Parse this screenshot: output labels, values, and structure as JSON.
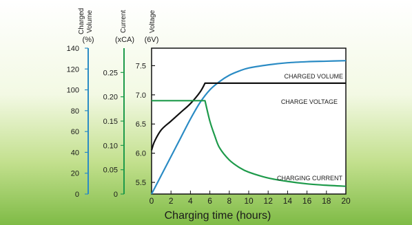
{
  "chart_data": {
    "type": "line",
    "xlabel": "Charging time (hours)",
    "x_ticks": [
      0,
      2,
      4,
      6,
      8,
      10,
      12,
      14,
      16,
      18,
      20
    ],
    "xlim": [
      0,
      20
    ],
    "axes": {
      "volume": {
        "title": "Charged Volume",
        "unit": "(%)",
        "ticks": [
          0,
          20,
          40,
          60,
          80,
          100,
          120,
          140
        ],
        "range": [
          0,
          140
        ],
        "color": "#2a8bc4"
      },
      "current": {
        "title": "Current",
        "unit": "(xCA)",
        "ticks": [
          0,
          0.05,
          0.1,
          0.15,
          0.2,
          0.25
        ],
        "tick_labels": [
          "0",
          "0.05",
          "0.10",
          "0.15",
          "0.20",
          "0.25"
        ],
        "range": [
          0,
          0.3
        ],
        "color": "#1d9a4a"
      },
      "voltage": {
        "title": "Voltage",
        "unit": "(6V)",
        "ticks": [
          5.5,
          6.0,
          6.5,
          7.0,
          7.5
        ],
        "tick_labels": [
          "5.5",
          "6.0",
          "6.5",
          "7.0",
          "7.5"
        ],
        "range": [
          5.3,
          7.8
        ],
        "color": "#111111"
      }
    },
    "series": [
      {
        "name": "CHARGED VOLUME",
        "axis": "volume",
        "color": "#2a8bc4",
        "x": [
          0,
          1,
          2,
          3,
          4,
          5,
          6,
          7,
          8,
          9,
          10,
          12,
          14,
          16,
          18,
          20
        ],
        "y": [
          0,
          18,
          36,
          54,
          72,
          88,
          100,
          108,
          114,
          118,
          121,
          124,
          126,
          127,
          127.5,
          128
        ]
      },
      {
        "name": "CHARGE VOLTAGE",
        "axis": "voltage",
        "color": "#111111",
        "x": [
          0,
          0.3,
          1,
          2,
          3,
          4,
          5,
          5.5,
          20
        ],
        "y": [
          6.05,
          6.2,
          6.4,
          6.55,
          6.7,
          6.85,
          7.05,
          7.2,
          7.2
        ]
      },
      {
        "name": "CHARGING CURRENT",
        "axis": "current",
        "color": "#1d9a4a",
        "x": [
          0,
          5.5,
          6,
          6.5,
          7,
          8,
          9,
          10,
          12,
          14,
          16,
          18,
          20
        ],
        "y": [
          0.192,
          0.192,
          0.15,
          0.12,
          0.095,
          0.07,
          0.055,
          0.045,
          0.033,
          0.026,
          0.021,
          0.018,
          0.016
        ]
      }
    ],
    "grid": false
  }
}
